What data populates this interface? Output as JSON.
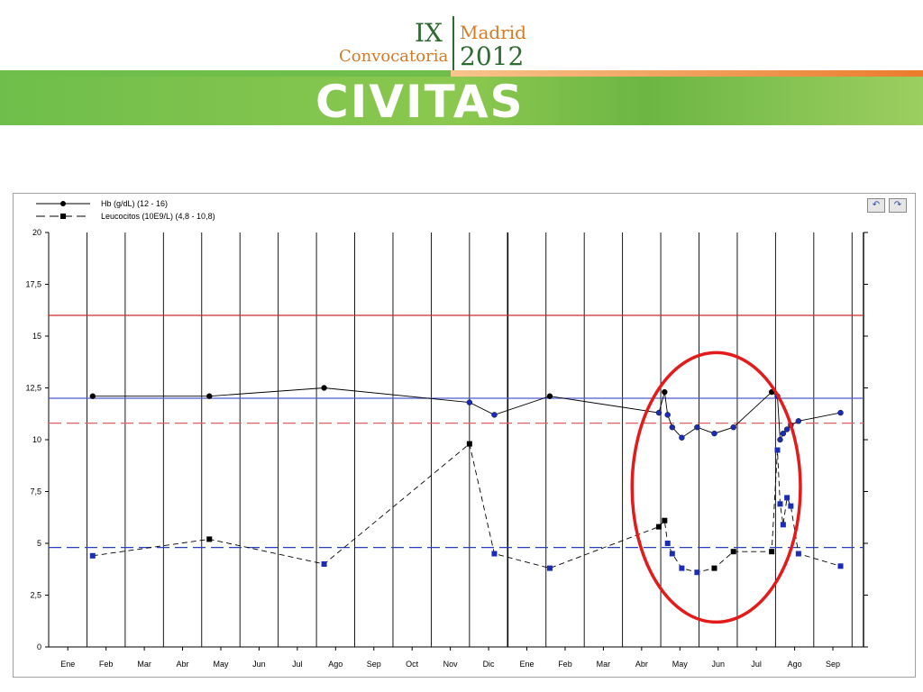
{
  "header": {
    "roman": "IX",
    "convocatoria": "Convocatoria",
    "city": "Madrid",
    "year": "2012",
    "brand": "CIVITAS"
  },
  "colors": {
    "hb_line": "#000000",
    "hb_marker": "#1c2db5",
    "leu_marker": "#1c2db5",
    "hb_ref": "#4b5ccf",
    "hb_upper_ref": "#d22b2b",
    "leu_upper_ref": "#e06060",
    "leu_ref": "#2740c0",
    "highlight": "#e31b1b"
  },
  "chart_data": {
    "type": "line",
    "legend": [
      {
        "name": "Hb (g/dL) (12 - 16)"
      },
      {
        "name": "Leucocitos (10E9/L) (4,8 - 10,8)"
      }
    ],
    "y_ticks": [
      "0",
      "2,5",
      "5",
      "7,5",
      "10",
      "12,5",
      "15",
      "17,5",
      "20"
    ],
    "ylim": [
      0,
      20
    ],
    "x_ticks": [
      "Ene",
      "Feb",
      "Mar",
      "Abr",
      "May",
      "Jun",
      "Jul",
      "Ago",
      "Sep",
      "Oct",
      "Nov",
      "Dic",
      "Ene",
      "Feb",
      "Mar",
      "Abr",
      "May",
      "Jun",
      "Jul",
      "Ago",
      "Sep"
    ],
    "xlim": [
      0,
      21.3
    ],
    "grid": true,
    "reference_lines": [
      {
        "series": "Hb",
        "kind": "upper",
        "y": 16
      },
      {
        "series": "Hb",
        "kind": "lower",
        "y": 12
      },
      {
        "series": "Leucocitos",
        "kind": "upper",
        "y": 10.8
      },
      {
        "series": "Leucocitos",
        "kind": "lower",
        "y": 4.8
      }
    ],
    "series": [
      {
        "name": "Hb",
        "points": [
          [
            1.15,
            12.1
          ],
          [
            4.2,
            12.1
          ],
          [
            7.2,
            12.5
          ],
          [
            11.0,
            11.8
          ],
          [
            11.65,
            11.2
          ],
          [
            13.1,
            12.1
          ],
          [
            15.95,
            11.3
          ],
          [
            16.1,
            12.3
          ],
          [
            16.18,
            11.2
          ],
          [
            16.3,
            10.6
          ],
          [
            16.55,
            10.1
          ],
          [
            16.95,
            10.6
          ],
          [
            17.4,
            10.3
          ],
          [
            17.9,
            10.6
          ],
          [
            18.9,
            12.3
          ],
          [
            19.05,
            12.1
          ],
          [
            19.12,
            10.0
          ],
          [
            19.2,
            10.3
          ],
          [
            19.3,
            10.5
          ],
          [
            19.4,
            10.7
          ],
          [
            19.6,
            10.9
          ],
          [
            20.7,
            11.3
          ]
        ]
      },
      {
        "name": "Leucocitos",
        "points": [
          [
            1.15,
            4.4
          ],
          [
            4.2,
            5.2
          ],
          [
            7.2,
            4.0
          ],
          [
            11.0,
            9.8
          ],
          [
            11.65,
            4.5
          ],
          [
            13.1,
            3.8
          ],
          [
            15.95,
            5.8
          ],
          [
            16.1,
            6.1
          ],
          [
            16.18,
            5.0
          ],
          [
            16.3,
            4.5
          ],
          [
            16.55,
            3.8
          ],
          [
            16.95,
            3.6
          ],
          [
            17.4,
            3.8
          ],
          [
            17.9,
            4.6
          ],
          [
            18.9,
            4.6
          ],
          [
            19.05,
            9.5
          ],
          [
            19.12,
            6.9
          ],
          [
            19.2,
            5.9
          ],
          [
            19.3,
            7.2
          ],
          [
            19.4,
            6.8
          ],
          [
            19.6,
            4.5
          ],
          [
            20.7,
            3.9
          ]
        ]
      }
    ],
    "annotations": [
      {
        "type": "ellipse",
        "cx": 17.45,
        "cy": 7.7,
        "rx": 2.2,
        "ry": 6.5
      }
    ]
  }
}
